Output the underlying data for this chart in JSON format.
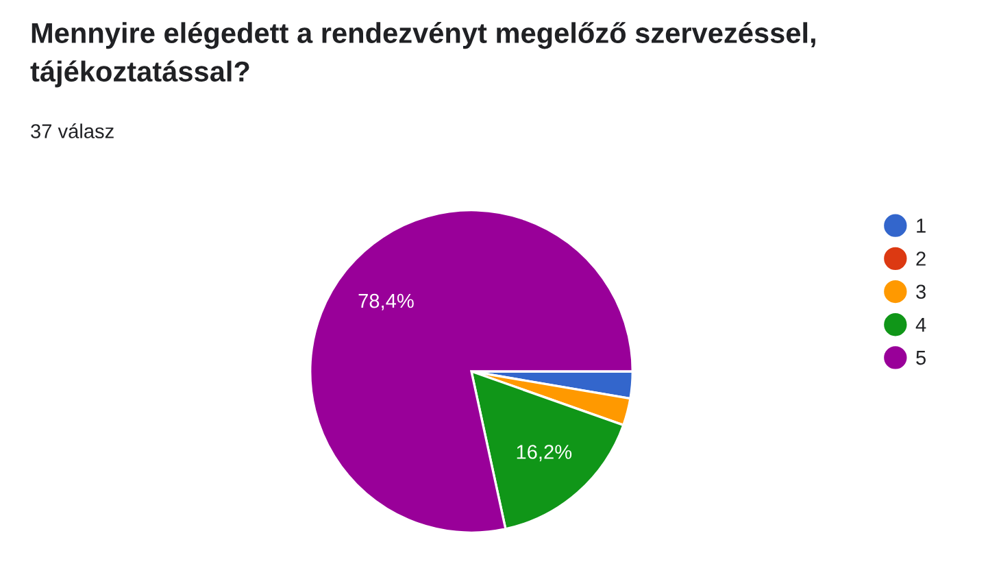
{
  "chart_data": {
    "type": "pie",
    "title": "Mennyire elégedett a rendezvényt megelőző szervezéssel, tájékoztatással?",
    "subtitle": "37 válasz",
    "categories": [
      "1",
      "2",
      "3",
      "4",
      "5"
    ],
    "values": [
      2.7,
      0,
      2.7,
      16.2,
      78.4
    ],
    "colors": [
      "#3366cc",
      "#dc3912",
      "#ff9900",
      "#109618",
      "#990099"
    ],
    "value_labels": [
      null,
      null,
      null,
      "16,2%",
      "78,4%"
    ],
    "legend": "right"
  }
}
